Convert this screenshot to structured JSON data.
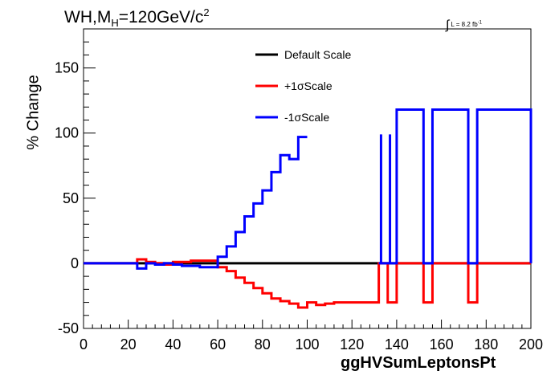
{
  "chart_data": {
    "type": "line",
    "title_main": "WH,M",
    "title_sub": "H",
    "title_rest": "=120GeV/c",
    "title_sup": "2",
    "lumi_int": "∫",
    "lumi_text": "L = 8.2 fb",
    "lumi_sup": "-1",
    "xlabel": "ggHVSumLeptonsPt",
    "ylabel": "% Change",
    "xlim": [
      0,
      200
    ],
    "ylim": [
      -50,
      180
    ],
    "xticks": [
      0,
      20,
      40,
      60,
      80,
      100,
      120,
      140,
      160,
      180,
      200
    ],
    "yticks": [
      -50,
      0,
      50,
      100,
      150
    ],
    "grid": false,
    "legend_position": "top-center",
    "series": [
      {
        "name": "Default Scale",
        "color": "#000000",
        "edges": [
          0,
          200
        ],
        "values": [
          0
        ]
      },
      {
        "name": "+1σScale",
        "color": "#ff0000",
        "edges": [
          0,
          24,
          28,
          32,
          36,
          40,
          44,
          48,
          52,
          56,
          60,
          64,
          68,
          72,
          76,
          80,
          84,
          88,
          92,
          96,
          100,
          104,
          108,
          112,
          116,
          120,
          124,
          128,
          132,
          136,
          140,
          152,
          156,
          172,
          176,
          200
        ],
        "values": [
          0,
          3,
          1,
          0,
          -1,
          1,
          1,
          2,
          2,
          2,
          -3,
          -6,
          -11,
          -15,
          -19,
          -23,
          -27,
          -29,
          -31,
          -34,
          -30,
          -32,
          -31,
          -30,
          -30,
          -30,
          -30,
          -30,
          0,
          -30,
          0,
          -30,
          0,
          -30,
          0
        ]
      },
      {
        "name": "-1σScale",
        "color": "#0000ff",
        "edges": [
          0,
          24,
          28,
          32,
          36,
          40,
          44,
          48,
          52,
          56,
          60,
          64,
          68,
          72,
          76,
          80,
          84,
          88,
          92,
          96,
          100,
          132,
          136,
          140,
          152,
          156,
          172,
          176,
          200
        ],
        "values": [
          0,
          -4,
          0,
          -1,
          0,
          -1,
          -2,
          -2,
          -3,
          -3,
          5,
          13,
          24,
          36,
          46,
          56,
          70,
          83,
          80,
          97,
          null,
          0,
          0,
          118,
          0,
          118,
          0,
          118,
          0
        ],
        "spikes": [
          133,
          137
        ]
      }
    ],
    "spike_top": 99
  }
}
